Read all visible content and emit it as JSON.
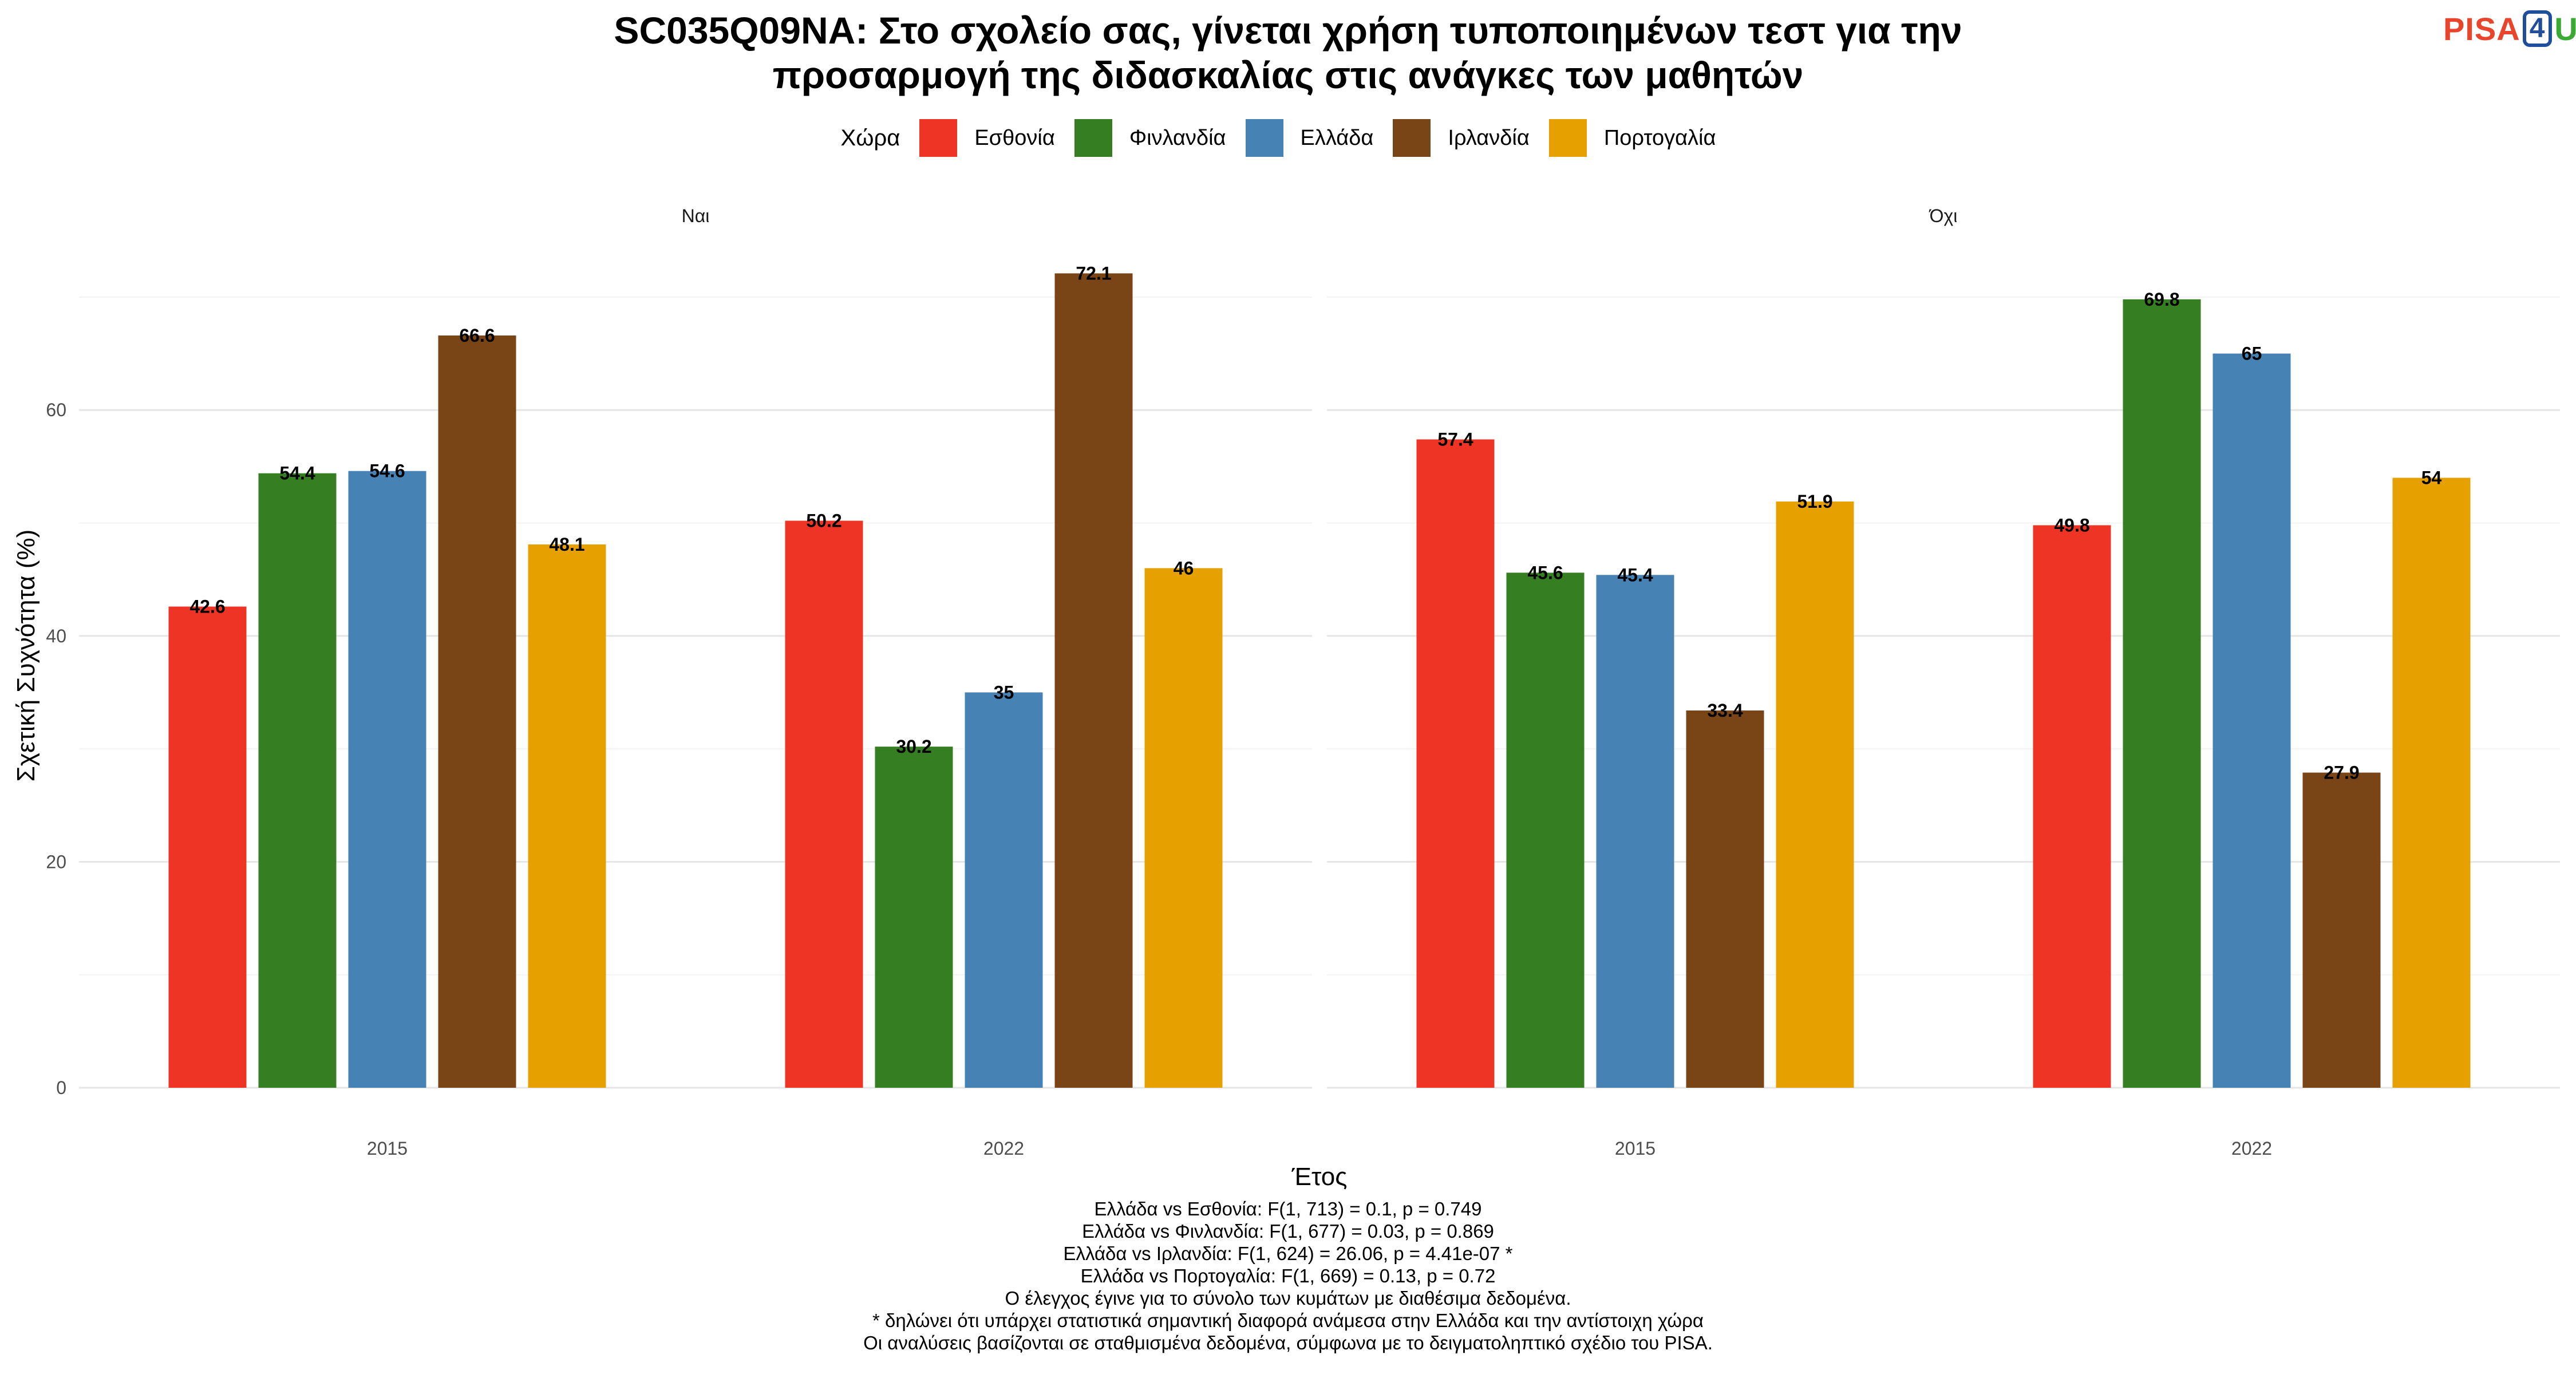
{
  "title": {
    "line1": "SC035Q09NA: Στο σχολείο σας, γίνεται χρήση τυποποιημένων τεστ για την",
    "line2": "προσαρμογή της διδασκαλίας στις ανάγκες των μαθητών"
  },
  "logo": {
    "part1": "PISA",
    "part2": "4",
    "part3": "U"
  },
  "colors": {
    "Εσθονία": "#ee3424",
    "Φινλανδία": "#367e22",
    "Ελλάδα": "#4682b4",
    "Ιρλανδία": "#794416",
    "Πορτογαλία": "#e6a000"
  },
  "chart_data": {
    "type": "bar",
    "legend_title": "Χώρα",
    "legend_position": "top",
    "ylabel": "Σχετική Συχνότητα (%)",
    "xlabel": "Έτος",
    "ylim": [
      0,
      75
    ],
    "yticks": [
      0,
      20,
      40,
      60
    ],
    "grid": true,
    "series_names": [
      "Εσθονία",
      "Φινλανδία",
      "Ελλάδα",
      "Ιρλανδία",
      "Πορτογαλία"
    ],
    "panels": [
      {
        "label": "Ναι",
        "categories": [
          "2015",
          "2022"
        ],
        "series": [
          {
            "name": "Εσθονία",
            "values": [
              42.6,
              50.2
            ]
          },
          {
            "name": "Φινλανδία",
            "values": [
              54.4,
              30.2
            ]
          },
          {
            "name": "Ελλάδα",
            "values": [
              54.6,
              35
            ]
          },
          {
            "name": "Ιρλανδία",
            "values": [
              66.6,
              72.1
            ]
          },
          {
            "name": "Πορτογαλία",
            "values": [
              48.1,
              46
            ]
          }
        ]
      },
      {
        "label": "Όχι",
        "categories": [
          "2015",
          "2022"
        ],
        "series": [
          {
            "name": "Εσθονία",
            "values": [
              57.4,
              49.8
            ]
          },
          {
            "name": "Φινλανδία",
            "values": [
              45.6,
              69.8
            ]
          },
          {
            "name": "Ελλάδα",
            "values": [
              45.4,
              65
            ]
          },
          {
            "name": "Ιρλανδία",
            "values": [
              33.4,
              27.9
            ]
          },
          {
            "name": "Πορτογαλία",
            "values": [
              51.9,
              54
            ]
          }
        ]
      }
    ]
  },
  "caption": [
    "Ελλάδα vs Εσθονία: F(1, 713) = 0.1, p = 0.749",
    "Ελλάδα vs Φινλανδία: F(1, 677) = 0.03, p = 0.869",
    "Ελλάδα vs Ιρλανδία: F(1, 624) = 26.06, p = 4.41e-07 *",
    "Ελλάδα vs Πορτογαλία: F(1, 669) = 0.13, p = 0.72",
    "Ο έλεγχος έγινε για το σύνολο των κυμάτων με διαθέσιμα δεδομένα.",
    "* δηλώνει ότι υπάρχει στατιστικά σημαντική διαφορά ανάμεσα στην Ελλάδα και την αντίστοιχη χώρα",
    "Οι αναλύσεις βασίζονται σε σταθμισμένα δεδομένα, σύμφωνα με το δειγματοληπτικό σχέδιο του PISA."
  ]
}
